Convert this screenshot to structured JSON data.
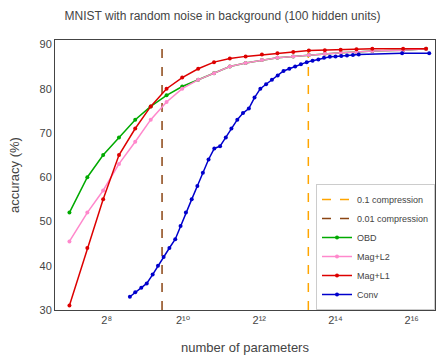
{
  "chart_data": {
    "type": "line",
    "title": "MNIST with random noise in background (100 hidden units)",
    "x_label": "number of parameters",
    "y_label": "accuracy (%)",
    "log": "x",
    "grid": false,
    "legend": "lower right",
    "xlim": [
      100,
      100000
    ],
    "ylim": [
      30,
      91
    ],
    "xticks": [
      {
        "value": 256,
        "label": "2⁸"
      },
      {
        "value": 1024,
        "label": "2¹⁰"
      },
      {
        "value": 4096,
        "label": "2¹²"
      },
      {
        "value": 16384,
        "label": "2¹⁴"
      },
      {
        "value": 65536,
        "label": "2¹⁶"
      }
    ],
    "yticks": [
      30,
      40,
      50,
      60,
      70,
      80,
      90
    ],
    "series": [
      {
        "name": "0.1 compression",
        "type": "vline",
        "color": "#FFA500",
        "line_style": "dashed",
        "x": [
          10000
        ]
      },
      {
        "name": "0.01 compression",
        "type": "vline",
        "color": "#8B4513",
        "line_style": "dashed",
        "x": [
          700
        ]
      },
      {
        "name": "OBD",
        "type": "line",
        "color": "#00aa00",
        "marker": "circle",
        "line_style": "solid",
        "x": [
          130,
          180,
          240,
          320,
          430,
          570,
          760,
          1010,
          1350,
          1800,
          2400,
          3200,
          4300,
          5700,
          7600,
          10100,
          13500,
          18000,
          24000,
          32000,
          56000,
          85000
        ],
        "values": [
          52,
          60,
          65,
          69,
          73,
          76,
          78.5,
          80.5,
          82,
          83.5,
          85,
          85.8,
          86.5,
          87,
          87.3,
          87.6,
          87.9,
          88.1,
          88.3,
          88.5,
          88.7,
          89
        ]
      },
      {
        "name": "Mag+L2",
        "type": "line",
        "color": "#ff88cc",
        "marker": "circle",
        "line_style": "solid",
        "x": [
          130,
          180,
          240,
          320,
          430,
          570,
          760,
          1010,
          1350,
          1800,
          2400,
          3200,
          4300,
          5700,
          7600,
          10100,
          13500,
          18000,
          24000,
          32000,
          56000,
          85000
        ],
        "values": [
          45.5,
          52,
          57,
          63,
          68,
          73,
          77,
          80,
          82,
          83.5,
          85,
          85.8,
          86.5,
          87,
          87.3,
          87.6,
          87.9,
          88.1,
          88.3,
          88.5,
          88.7,
          89
        ]
      },
      {
        "name": "Mag+L1",
        "type": "line",
        "color": "#dd0000",
        "marker": "circle",
        "line_style": "solid",
        "x": [
          130,
          180,
          240,
          320,
          430,
          570,
          760,
          1010,
          1350,
          1800,
          2400,
          3200,
          4300,
          5700,
          7600,
          10100,
          13500,
          18000,
          24000,
          32000,
          56000,
          85000
        ],
        "values": [
          31,
          44,
          55,
          65,
          71,
          76,
          80,
          82.5,
          84.5,
          86,
          86.8,
          87.3,
          87.7,
          88.0,
          88.3,
          88.6,
          88.7,
          88.8,
          88.9,
          89.0,
          89.0,
          89.0
        ]
      },
      {
        "name": "Conv",
        "type": "line",
        "color": "#0000cc",
        "marker": "circle",
        "line_style": "solid",
        "x": [
          390,
          430,
          480,
          530,
          590,
          650,
          720,
          800,
          890,
          980,
          1080,
          1200,
          1330,
          1470,
          1630,
          1810,
          2010,
          2230,
          2470,
          2750,
          3050,
          3390,
          3760,
          4180,
          4640,
          5160,
          5730,
          6370,
          7080,
          7870,
          8740,
          9710,
          10800,
          12000,
          13300,
          14800,
          16400,
          18200,
          20200,
          22500,
          25000,
          55000,
          90000
        ],
        "values": [
          33,
          34,
          35,
          36,
          38,
          40,
          42,
          44,
          46,
          49,
          52,
          55,
          58,
          61,
          64,
          66.5,
          67,
          69,
          71,
          73,
          74.5,
          75.5,
          78,
          80,
          81,
          82,
          83,
          84,
          84.5,
          85,
          85.5,
          86,
          86.3,
          86.6,
          87,
          87.2,
          87.3,
          87.4,
          87.5,
          87.6,
          87.7,
          88,
          88
        ]
      }
    ]
  }
}
